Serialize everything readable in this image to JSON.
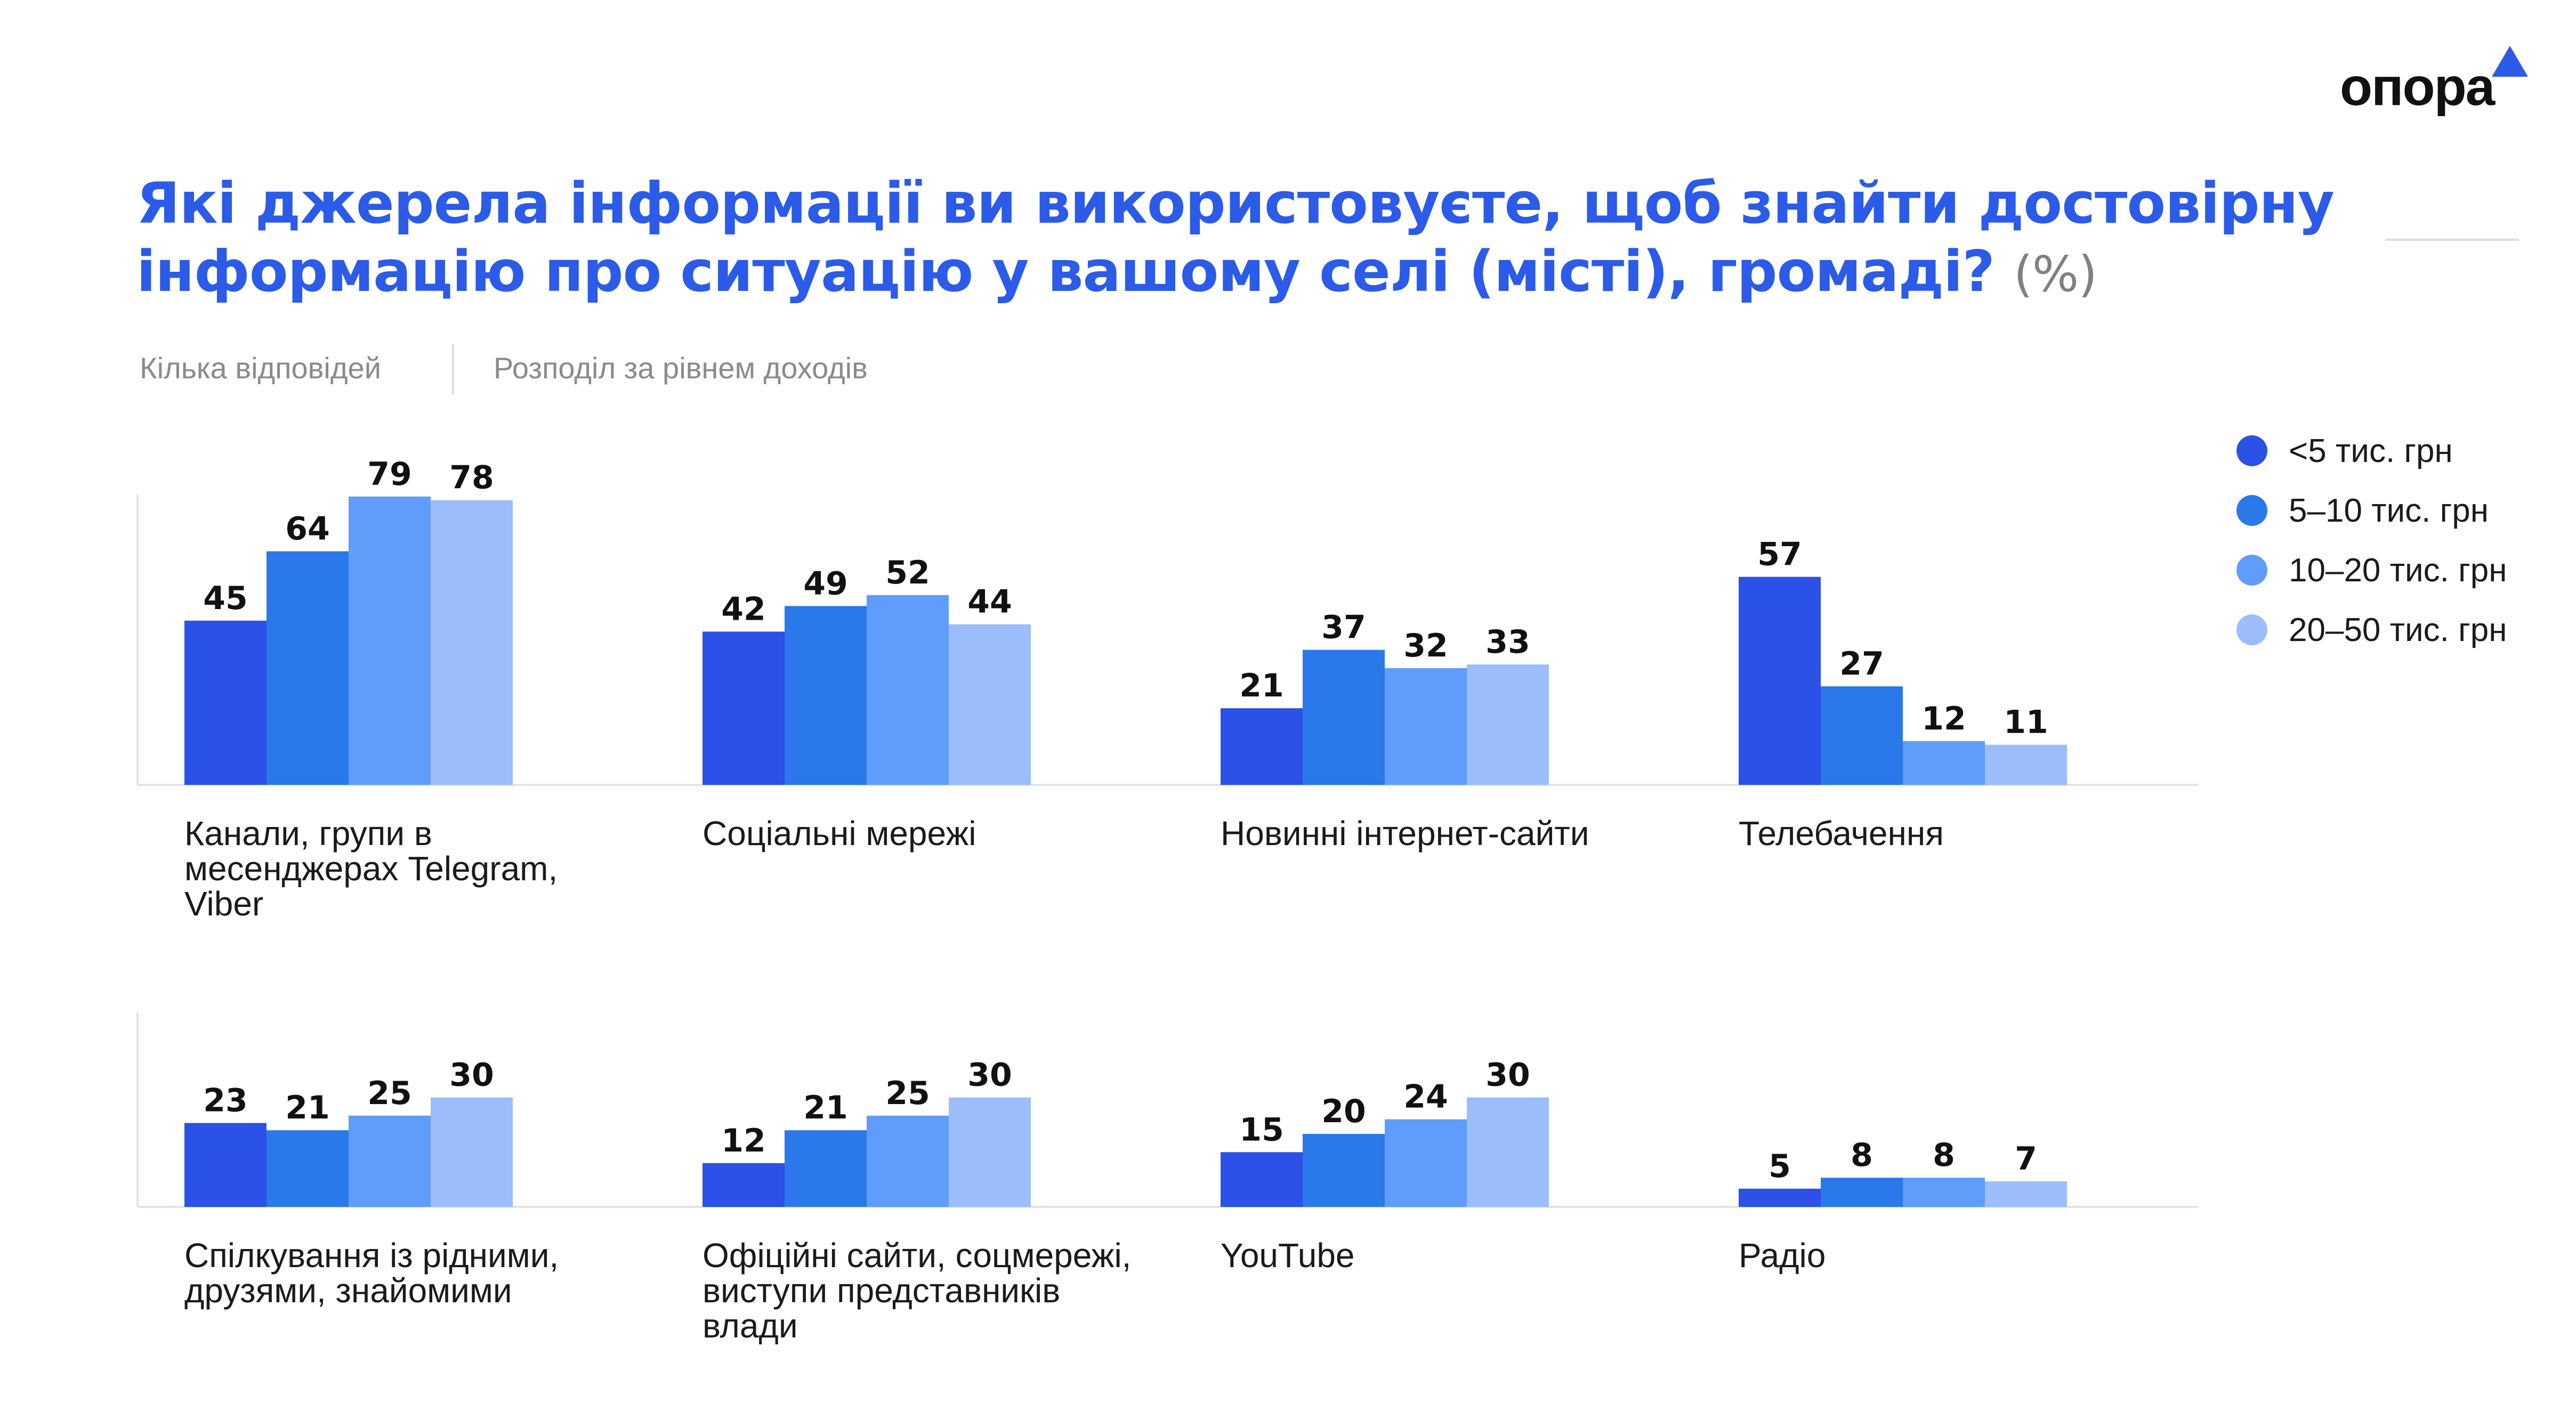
{
  "title": "Які джерела інформації ви використовуєте, щоб знайти достовірну інформацію про ситуацію у вашому селі (місті), громаді?",
  "title_unit": "(%)",
  "subtitle_left": "Кілька відповідей",
  "subtitle_right": "Розподіл за рівнем доходів",
  "logo": "опора",
  "colors": {
    "title": "#2b5be8",
    "s1": "#2b51e6",
    "s2": "#2a78ea",
    "s3": "#5f9cfb",
    "s4": "#9bbdfc"
  },
  "legend": [
    "<5 тис. грн",
    "5–10 тис. грн",
    "10–20 тис. грн",
    "20–50 тис. грн"
  ],
  "chart_data": {
    "type": "bar",
    "title": "Які джерела інформації ви використовуєте, щоб знайти достовірну інформацію про ситуацію у вашому селі (місті), громаді?",
    "ylim": [
      0,
      100
    ],
    "series_names": [
      "<5 тис. грн",
      "5–10 тис. грн",
      "10–20 тис. грн",
      "20–50 тис. грн"
    ],
    "groups": [
      {
        "label": "Канали, групи в месенджерах Telegram, Viber",
        "values": [
          45,
          64,
          79,
          78
        ]
      },
      {
        "label": "Соціальні мережі",
        "values": [
          42,
          49,
          52,
          44
        ]
      },
      {
        "label": "Новинні інтернет-сайти",
        "values": [
          21,
          37,
          32,
          33
        ]
      },
      {
        "label": "Телебачення",
        "values": [
          57,
          27,
          12,
          11
        ]
      },
      {
        "label": "Спілкування із рідними, друзями, знайомими",
        "values": [
          23,
          21,
          25,
          30
        ]
      },
      {
        "label": "Офіційні сайти, соцмережі, виступи представників влади",
        "values": [
          12,
          21,
          25,
          30
        ]
      },
      {
        "label": "YouTube",
        "values": [
          15,
          20,
          24,
          30
        ]
      },
      {
        "label": "Радіо",
        "values": [
          5,
          8,
          8,
          7
        ]
      }
    ]
  }
}
